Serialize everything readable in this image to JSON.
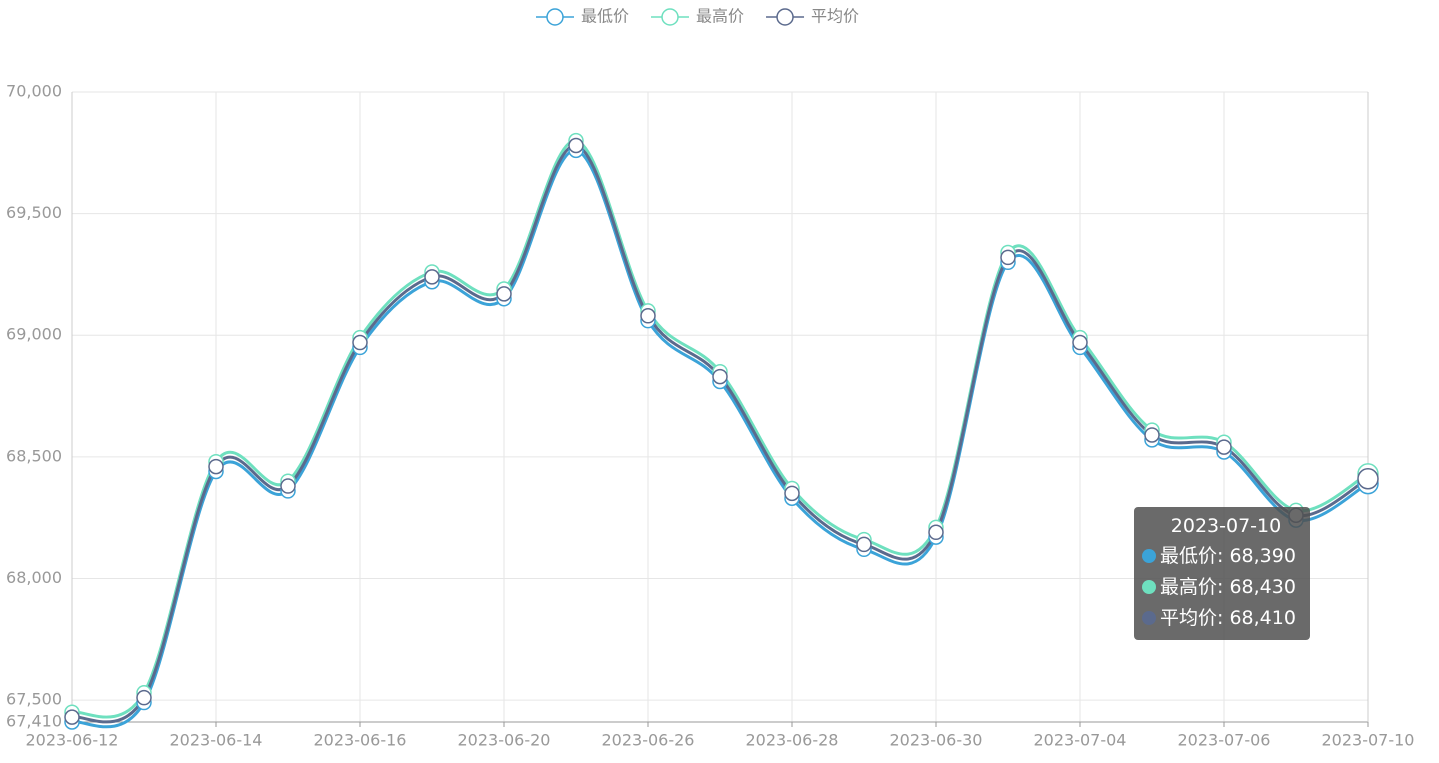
{
  "chart_data": {
    "type": "line",
    "categories": [
      "2023-06-12",
      null,
      "2023-06-14",
      null,
      "2023-06-16",
      null,
      "2023-06-20",
      null,
      "2023-06-26",
      null,
      "2023-06-28",
      null,
      "2023-06-30",
      null,
      "2023-07-04",
      null,
      "2023-07-06",
      null,
      "2023-07-10"
    ],
    "series": [
      {
        "name": "最低价",
        "color": "#3ba3d8",
        "values": [
          67410,
          67490,
          68440,
          68360,
          68950,
          69220,
          69150,
          69760,
          69060,
          68810,
          68330,
          68120,
          68170,
          69300,
          68950,
          68570,
          68520,
          68240,
          68390
        ]
      },
      {
        "name": "最高价",
        "color": "#6ee0bf",
        "values": [
          67450,
          67530,
          68480,
          68400,
          68990,
          69260,
          69190,
          69800,
          69100,
          68850,
          68370,
          68160,
          68210,
          69340,
          68990,
          68610,
          68560,
          68280,
          68430
        ]
      },
      {
        "name": "平均价",
        "color": "#5b6a8d",
        "values": [
          67430,
          67510,
          68460,
          68380,
          68970,
          69240,
          69170,
          69780,
          69080,
          68830,
          68350,
          68140,
          68190,
          69320,
          68970,
          68590,
          68540,
          68260,
          68410
        ]
      }
    ],
    "ylim": [
      67410,
      70000
    ],
    "yticks": [
      {
        "value": 67410,
        "label": "67,410"
      },
      {
        "value": 67500,
        "label": "67,500"
      },
      {
        "value": 68000,
        "label": "68,000"
      },
      {
        "value": 68500,
        "label": "68,500"
      },
      {
        "value": 69000,
        "label": "69,000"
      },
      {
        "value": 69500,
        "label": "69,500"
      },
      {
        "value": 70000,
        "label": "70,000"
      }
    ],
    "grid": true,
    "legend": "top",
    "tooltip": {
      "value_labels": [
        "68,390",
        "68,430",
        "68,410"
      ]
    }
  }
}
